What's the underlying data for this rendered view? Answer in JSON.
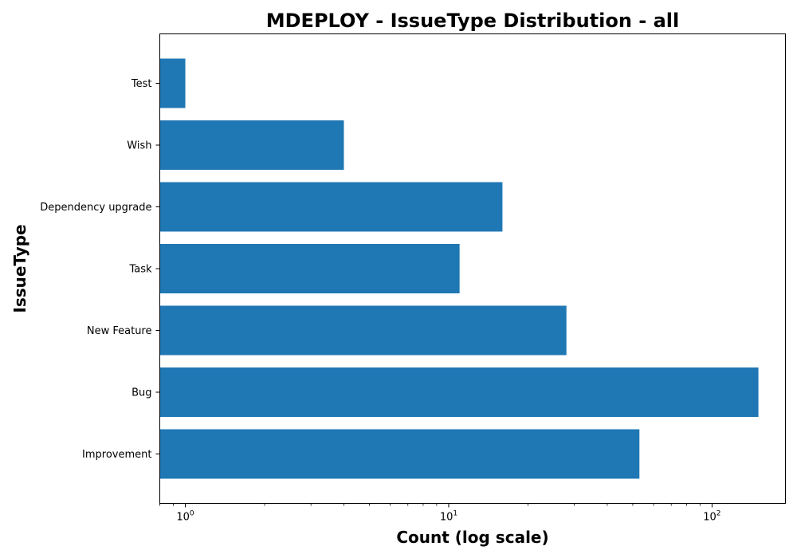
{
  "chart_data": {
    "type": "bar",
    "orientation": "horizontal",
    "title": "MDEPLOY - IssueType Distribution - all",
    "xlabel": "Count (log scale)",
    "ylabel": "IssueType",
    "x_scale": "log",
    "xlim": [
      0.8,
      190
    ],
    "x_ticks": [
      {
        "value": 1,
        "base": "10",
        "exp": "0"
      },
      {
        "value": 10,
        "base": "10",
        "exp": "1"
      },
      {
        "value": 100,
        "base": "10",
        "exp": "2"
      }
    ],
    "categories": [
      "Improvement",
      "Bug",
      "New Feature",
      "Task",
      "Dependency upgrade",
      "Wish",
      "Test"
    ],
    "values": [
      53,
      150,
      28,
      11,
      16,
      4,
      1
    ],
    "bar_color": "#1f77b4",
    "grid": false
  }
}
